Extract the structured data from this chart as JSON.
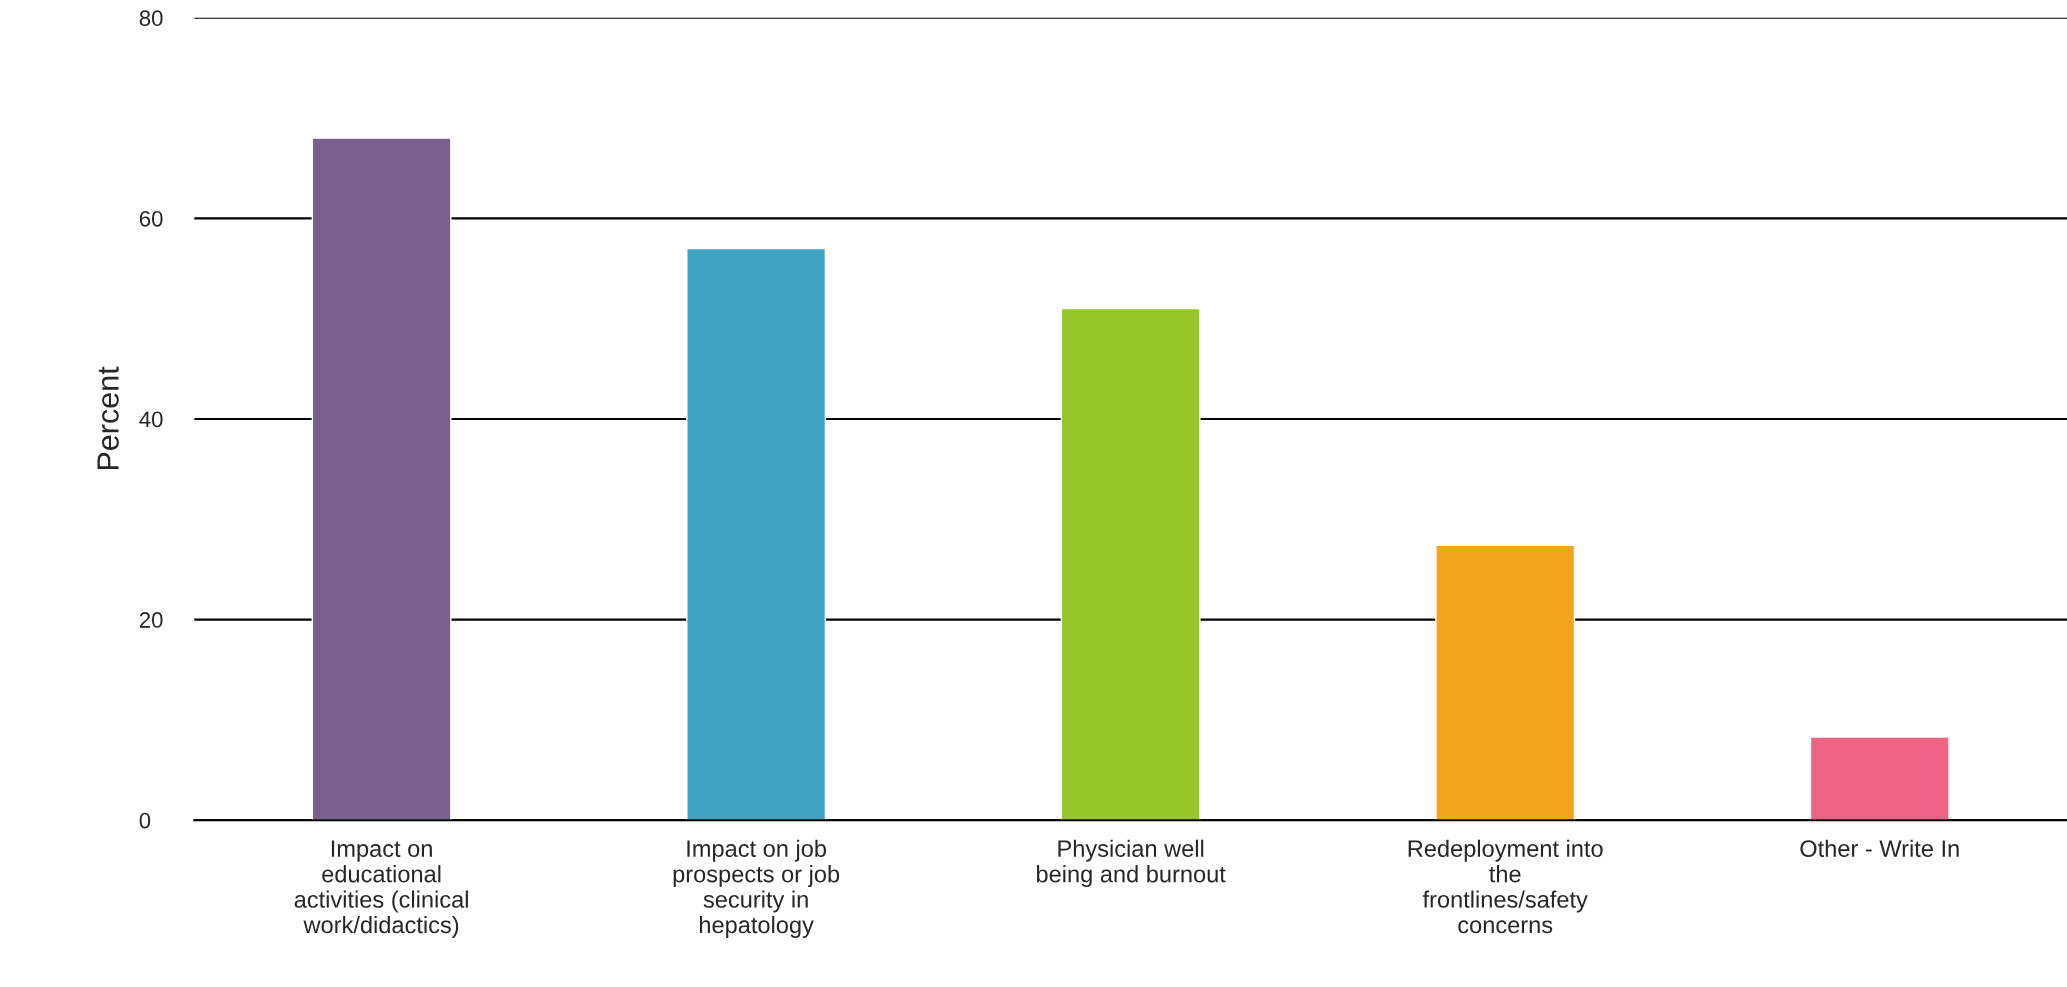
{
  "chart_data": {
    "type": "bar",
    "ylabel": "Percent",
    "categories": [
      "Impact on\neducational\nactivities (clinical\nwork/didactics)",
      "Impact on job\nprospects or job\nsecurity in\nhepatology",
      "Physician well\nbeing and burnout",
      "Redeployment into\nthe\nfrontlines/safety\nconcerns",
      "Other - Write In"
    ],
    "values": [
      68,
      57,
      51,
      27.4,
      8.3
    ],
    "colors": [
      "#7b5f8c",
      "#40a3c4",
      "#95c62a",
      "#f4a41d",
      "#ef6385"
    ],
    "ylim": [
      0,
      80
    ],
    "yticks": [
      0,
      20,
      40,
      60,
      80
    ],
    "grid": "y",
    "legend": false
  }
}
